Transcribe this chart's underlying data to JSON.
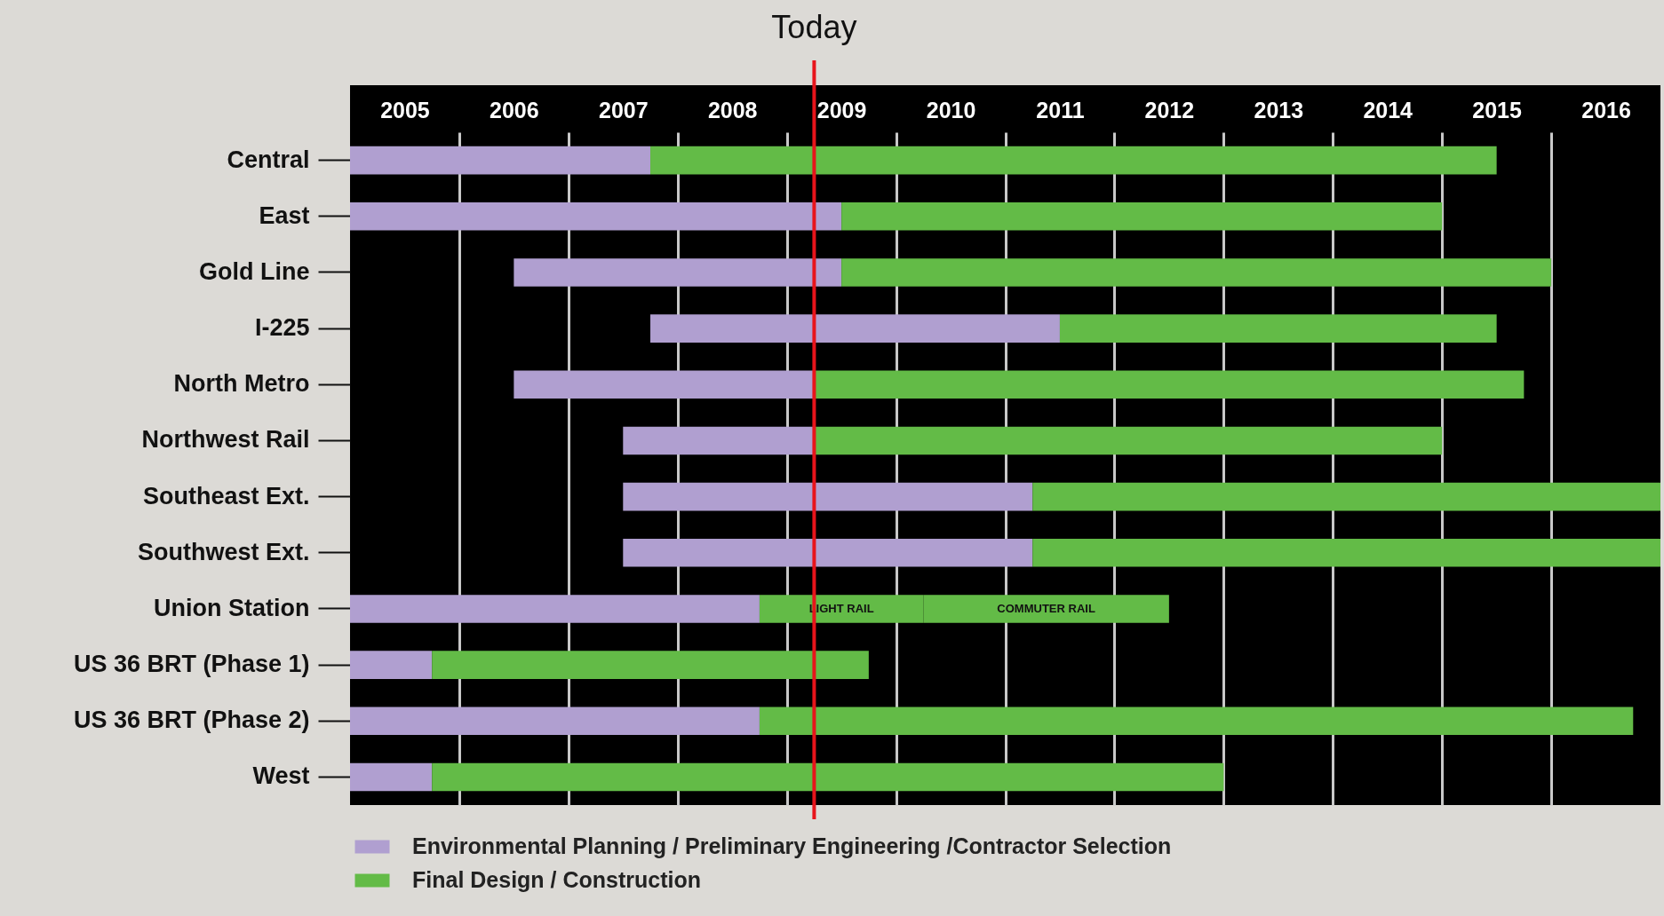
{
  "chart_data": {
    "type": "bar",
    "orientation": "horizontal",
    "categories": [
      "Central",
      "East",
      "Gold Line",
      "I-225",
      "North  Metro",
      "Northwest Rail",
      "Southeast Ext.",
      "Southwest Ext.",
      "Union  Station",
      "US 36 BRT (Phase 1)",
      "US 36 BRT (Phase 2)",
      "West"
    ],
    "series": [
      {
        "name": "Environmental Planning / Preliminary Engineering /Contractor Selection",
        "color": "#b09fd0",
        "base": [
          2005,
          2005,
          2006.5,
          2007.75,
          2006.5,
          2007.5,
          2007.5,
          2007.5,
          2005,
          2005,
          2005,
          2005
        ],
        "values": [
          2.75,
          4.5,
          3,
          3.75,
          2.75,
          1.75,
          3.75,
          3.75,
          3.75,
          0.75,
          3.75,
          0.75
        ]
      },
      {
        "name": "Final Design / Construction",
        "color": "#63bb47",
        "base": [
          2007.75,
          2009.5,
          2009.5,
          2011.5,
          2009.25,
          2009.25,
          2011.25,
          2011.25,
          2008.75,
          2005.75,
          2008.75,
          2005.75
        ],
        "values": [
          7.75,
          5.5,
          6.5,
          4,
          6.5,
          5.75,
          5.75,
          5.75,
          1.5,
          4,
          8,
          7.25
        ],
        "value_labels": [
          null,
          null,
          null,
          null,
          null,
          null,
          null,
          null,
          "LIGHT RAIL",
          null,
          null,
          null
        ]
      },
      {
        "color": "#63bb47",
        "base": [
          null,
          null,
          null,
          null,
          null,
          null,
          null,
          null,
          2010.25,
          null,
          null,
          null
        ],
        "values": [
          null,
          null,
          null,
          null,
          null,
          null,
          null,
          null,
          2.25,
          null,
          null,
          null
        ],
        "value_labels": [
          null,
          null,
          null,
          null,
          null,
          null,
          null,
          null,
          "COMMUTER RAIL",
          null,
          null,
          null
        ]
      }
    ],
    "xlim": [
      2005,
      2017
    ],
    "xticks": [
      {
        "value": 2005.5,
        "label": "2005"
      },
      {
        "value": 2006,
        "label": null
      },
      {
        "value": 2006.5,
        "label": "2006"
      },
      {
        "value": 2007,
        "label": null
      },
      {
        "value": 2007.5,
        "label": "2007"
      },
      {
        "value": 2008,
        "label": null
      },
      {
        "value": 2008.5,
        "label": "2008"
      },
      {
        "value": 2009,
        "label": null
      },
      {
        "value": 2009.5,
        "label": "2009"
      },
      {
        "value": 2010,
        "label": null
      },
      {
        "value": 2010.5,
        "label": "2010"
      },
      {
        "value": 2011,
        "label": null
      },
      {
        "value": 2011.5,
        "label": "2011"
      },
      {
        "value": 2012,
        "label": null
      },
      {
        "value": 2012.5,
        "label": "2012"
      },
      {
        "value": 2013,
        "label": null
      },
      {
        "value": 2013.5,
        "label": "2013"
      },
      {
        "value": 2014,
        "label": null
      },
      {
        "value": 2014.5,
        "label": "2014"
      },
      {
        "value": 2015,
        "label": null
      },
      {
        "value": 2015.5,
        "label": "2015"
      },
      {
        "value": 2016,
        "label": null
      },
      {
        "value": 2016.5,
        "label": "2016"
      }
    ],
    "grid": "x",
    "legend": "bottom left",
    "ref_lines": [
      {
        "axis": "x",
        "value": 2009.25,
        "label": "Today",
        "color": "#e8141b"
      }
    ]
  }
}
